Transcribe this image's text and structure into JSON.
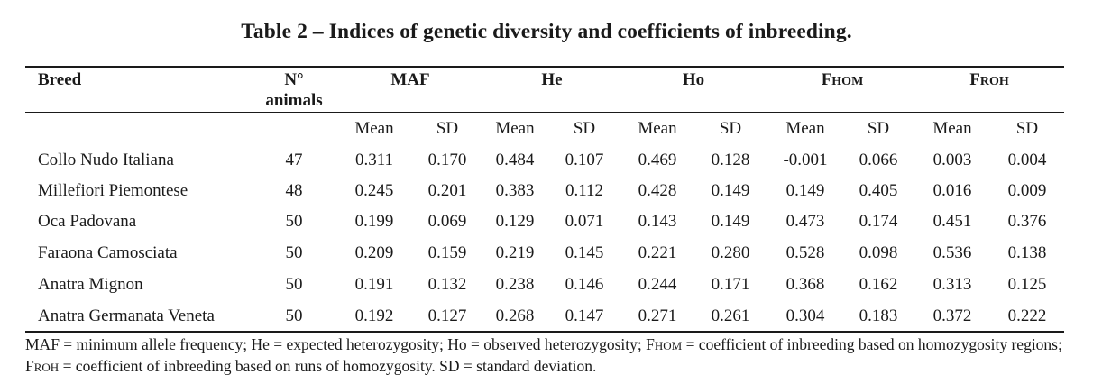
{
  "title": "Table 2 – Indices of genetic diversity and coefficients of inbreeding.",
  "headers": {
    "breed": "Breed",
    "animals_line1": "N°",
    "animals_line2": "animals",
    "maf": "MAF",
    "he": "He",
    "ho": "Ho",
    "fhom_main": "F",
    "fhom_sub": "HOM",
    "froh_main": "F",
    "froh_sub": "ROH"
  },
  "subheaders": [
    "Mean",
    "SD",
    "Mean",
    "SD",
    "Mean",
    "SD",
    "Mean",
    "SD",
    "Mean",
    "SD"
  ],
  "rows": [
    {
      "breed": "Collo Nudo Italiana",
      "n": "47",
      "values": [
        "0.311",
        "0.170",
        "0.484",
        "0.107",
        "0.469",
        "0.128",
        "-0.001",
        "0.066",
        "0.003",
        "0.004"
      ]
    },
    {
      "breed": "Millefiori Piemontese",
      "n": "48",
      "values": [
        "0.245",
        "0.201",
        "0.383",
        "0.112",
        "0.428",
        "0.149",
        "0.149",
        "0.405",
        "0.016",
        "0.009"
      ]
    },
    {
      "breed": "Oca Padovana",
      "n": "50",
      "values": [
        "0.199",
        "0.069",
        "0.129",
        "0.071",
        "0.143",
        "0.149",
        "0.473",
        "0.174",
        "0.451",
        "0.376"
      ]
    },
    {
      "breed": "Faraona Camosciata",
      "n": "50",
      "values": [
        "0.209",
        "0.159",
        "0.219",
        "0.145",
        "0.221",
        "0.280",
        "0.528",
        "0.098",
        "0.536",
        "0.138"
      ]
    },
    {
      "breed": "Anatra Mignon",
      "n": "50",
      "values": [
        "0.191",
        "0.132",
        "0.238",
        "0.146",
        "0.244",
        "0.171",
        "0.368",
        "0.162",
        "0.313",
        "0.125"
      ]
    },
    {
      "breed": "Anatra Germanata Veneta",
      "n": "50",
      "values": [
        "0.192",
        "0.127",
        "0.268",
        "0.147",
        "0.271",
        "0.261",
        "0.304",
        "0.183",
        "0.372",
        "0.222"
      ]
    }
  ],
  "footnote": {
    "part1": "MAF = minimum allele frequency; He = expected heterozygosity; Ho = observed heterozygosity; F",
    "sub1": "HOM",
    "part2": " = coefficient of inbreeding based on homozygosity regions; F",
    "sub2": "ROH",
    "part3": " = coefficient of inbreeding based on runs of homozygosity. SD = standard deviation."
  }
}
